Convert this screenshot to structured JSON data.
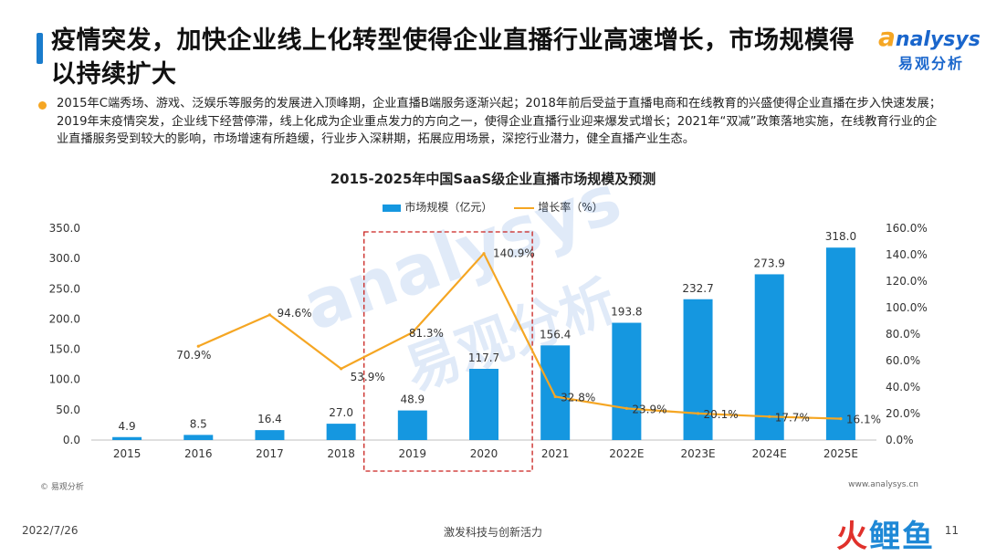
{
  "header": {
    "title": "疫情突发，加快企业线上化转型使得企业直播行业高速增长，市场规模得以持续扩大",
    "logo_en_a": "a",
    "logo_en_rest": "nalysys",
    "logo_cn": "易观分析"
  },
  "bullet": {
    "text": "2015年C端秀场、游戏、泛娱乐等服务的发展进入顶峰期，企业直播B端服务逐渐兴起；2018年前后受益于直播电商和在线教育的兴盛使得企业直播在步入快速发展；2019年末疫情突发，企业线下经营停滞，线上化成为企业重点发力的方向之一，使得企业直播行业迎来爆发式增长；2021年“双减”政策落地实施，在线教育行业的企业直播服务受到较大的影响，市场增速有所趋缓，行业步入深耕期，拓展应用场景，深挖行业潜力，健全直播产业生态。"
  },
  "colors": {
    "bar": "#1597e0",
    "line": "#f5a623",
    "highlight_box": "#c9211e",
    "title_bar": "#1a7ccc"
  },
  "chart_data": {
    "type": "bar",
    "title": "2015-2025年中国SaaS级企业直播市场规模及预测",
    "categories": [
      "2015",
      "2016",
      "2017",
      "2018",
      "2019",
      "2020",
      "2021",
      "2022E",
      "2023E",
      "2024E",
      "2025E"
    ],
    "series": [
      {
        "name": "市场规模（亿元）",
        "type": "bar",
        "axis": "left",
        "values": [
          4.9,
          8.5,
          16.4,
          27.0,
          48.9,
          117.7,
          156.4,
          193.8,
          232.7,
          273.9,
          318.0
        ],
        "labels": [
          "4.9",
          "8.5",
          "16.4",
          "27.0",
          "48.9",
          "117.7",
          "156.4",
          "193.8",
          "232.7",
          "273.9",
          "318.0"
        ]
      },
      {
        "name": "增长率（%）",
        "type": "line",
        "axis": "right",
        "values": [
          null,
          70.9,
          94.6,
          53.9,
          81.3,
          140.9,
          32.8,
          23.9,
          20.1,
          17.7,
          16.1
        ],
        "labels": [
          null,
          "70.9%",
          "94.6%",
          "53.9%",
          "81.3%",
          "140.9%",
          "32.8%",
          "23.9%",
          "20.1%",
          "17.7%",
          "16.1%"
        ]
      }
    ],
    "ylim_left": [
      0,
      350
    ],
    "ylim_right": [
      0,
      160
    ],
    "yticks_left": [
      "0.0",
      "50.0",
      "100.0",
      "150.0",
      "200.0",
      "250.0",
      "300.0",
      "350.0"
    ],
    "yticks_right": [
      "0.0%",
      "20.0%",
      "40.0%",
      "60.0%",
      "80.0%",
      "100.0%",
      "120.0%",
      "140.0%",
      "160.0%"
    ],
    "grid": false,
    "legend_position": "top-center",
    "highlight_categories": [
      "2019",
      "2020"
    ]
  },
  "watermark": {
    "en": "analysys",
    "cn": "易观分析"
  },
  "footer": {
    "source": "© 易观分析",
    "url": "www.analysys.cn",
    "date": "2022/7/26",
    "slogan": "激发科技与创新活力",
    "page": "11",
    "brand_1": "火",
    "brand_2": "鲤",
    "brand_3": "鱼"
  }
}
